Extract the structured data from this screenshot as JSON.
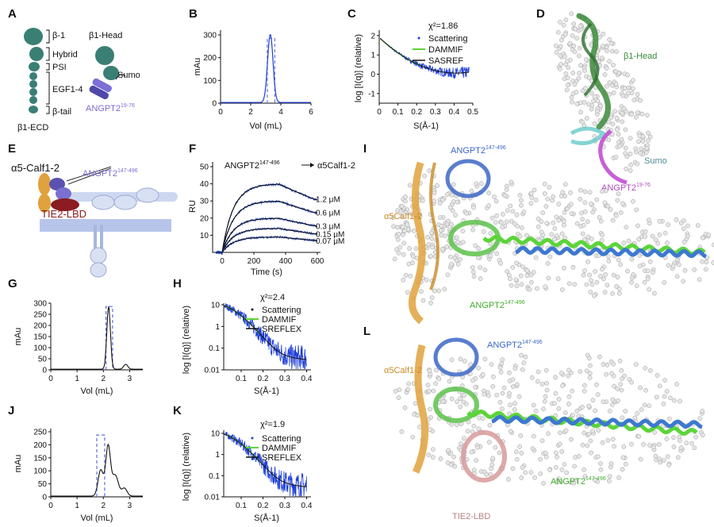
{
  "panels": {
    "A": {
      "letter": "A",
      "domains": [
        "β-1",
        "Hybrid",
        "PSI",
        "EGF1-4",
        "β-tail"
      ],
      "ecd_label": "β1-ECD",
      "head_label": "β1-Head",
      "sumo_label": "Sumo",
      "angpt_label": "ANGPT2",
      "angpt_sup": "19-76",
      "colors": {
        "integrin": "#3a7f74",
        "angpt": "#7b6ed6"
      }
    },
    "B": {
      "letter": "B"
    },
    "C": {
      "letter": "C",
      "chi": "χ²=1.86",
      "legend": [
        "Scattering",
        "DAMMIF",
        "SASREF"
      ]
    },
    "D": {
      "letter": "D",
      "head_label": "β1-Head",
      "sumo_label": "Sumo",
      "angpt_label": "ANGPT2",
      "angpt_sup": "19-76"
    },
    "E": {
      "letter": "E",
      "calf_label": "α5-Calf1-2",
      "angpt_label": "ANGPT2",
      "angpt_sup": "147-496",
      "tie2_label": "TIE2-LBD"
    },
    "F": {
      "letter": "F",
      "title_a": "ANGPT2",
      "title_sup": "147-496",
      "title_b": "α5Calf1-2",
      "conc_labels": [
        "1.2 μM",
        "0.6 μM",
        "0.3 μM",
        "0.15 μM",
        "0.07 μM"
      ]
    },
    "G": {
      "letter": "G"
    },
    "H": {
      "letter": "H",
      "chi": "χ²=2.4",
      "legend": [
        "Scattering",
        "DAMMIF",
        "SREFLEX"
      ]
    },
    "I": {
      "letter": "I",
      "calf_label": "α5Calf1-2",
      "angpt_top": "ANGPT2",
      "angpt_top_sup": "147-496",
      "angpt_bottom": "ANGPT2",
      "angpt_bottom_sup": "147-496"
    },
    "J": {
      "letter": "J"
    },
    "K": {
      "letter": "K",
      "chi": "χ²=1.9",
      "legend": [
        "Scattering",
        "DAMMIF",
        "SREFLEX"
      ]
    },
    "L": {
      "letter": "L",
      "calf_label": "α5Calf1-2",
      "angpt_top": "ANGPT2",
      "angpt_top_sup": "147-496",
      "angpt_bottom": "ANGPT2",
      "angpt_bottom_sup": "147-496",
      "tie2_label": "TIE2-LBD"
    }
  },
  "chart_data": [
    {
      "id": "B",
      "type": "line",
      "xlabel": "Vol (mL)",
      "ylabel": "mAu",
      "xlim": [
        0,
        6
      ],
      "ylim": [
        0,
        300
      ],
      "xticks": [
        0,
        2,
        4,
        6
      ],
      "yticks": [
        0,
        100,
        200,
        300
      ],
      "peak": {
        "x": 3.3,
        "height": 300,
        "width": 0.18
      },
      "fraction_window": [
        3.1,
        3.6
      ],
      "colors": {
        "trace": "#1f3fd6",
        "window": "#6a7bdc"
      }
    },
    {
      "id": "C",
      "type": "line",
      "xlabel": "S(Å-1)",
      "ylabel": "log [I(q)] (relative)",
      "xlim": [
        0,
        0.5
      ],
      "ylim": [
        -1.5,
        2.2
      ],
      "xticks": [
        0,
        0.1,
        0.2,
        0.3,
        0.4,
        0.5
      ],
      "yticks": [
        -1,
        0,
        1,
        2
      ],
      "series": [
        {
          "name": "Scattering"
        },
        {
          "name": "DAMMIF"
        },
        {
          "name": "SASREF"
        }
      ],
      "colors": {
        "Scattering": "#1f3fd6",
        "DAMMIF": "#5cd43a",
        "SASREF": "#111111"
      }
    },
    {
      "id": "F",
      "type": "line",
      "xlabel": "Time (s)",
      "ylabel": "RU",
      "xlim": [
        -60,
        600
      ],
      "ylim": [
        0,
        50
      ],
      "xticks": [
        0,
        200,
        400,
        600
      ],
      "yticks": [
        10,
        20,
        30,
        40,
        50
      ],
      "injection_end": 360,
      "series": [
        {
          "name": "1.2 μM",
          "plateau": 40
        },
        {
          "name": "0.6 μM",
          "plateau": 30
        },
        {
          "name": "0.3 μM",
          "plateau": 20
        },
        {
          "name": "0.15 μM",
          "plateau": 14
        },
        {
          "name": "0.07 μM",
          "plateau": 9
        }
      ],
      "colors": {
        "fit": "#111111",
        "data": "#2a50d8"
      }
    },
    {
      "id": "G",
      "type": "line",
      "xlabel": "Vol (mL)",
      "ylabel": "mAu",
      "xlim": [
        0,
        3.5
      ],
      "ylim": [
        0,
        300
      ],
      "xticks": [
        0,
        1,
        2,
        3
      ],
      "yticks": [
        0,
        50,
        100,
        150,
        200,
        250,
        300
      ],
      "peaks": [
        {
          "x": 2.2,
          "height": 280,
          "width": 0.07
        },
        {
          "x": 2.85,
          "height": 22,
          "width": 0.08
        }
      ],
      "fraction_window": [
        2.1,
        2.35
      ],
      "colors": {
        "trace": "#111111",
        "window": "#5a6ee0"
      }
    },
    {
      "id": "H",
      "type": "line",
      "xlabel": "S(Å-1)",
      "ylabel": "log [I(q)] (relative)",
      "xlim": [
        0.02,
        0.42
      ],
      "ylim": [
        0.01,
        10
      ],
      "yscale": "log",
      "xticks": [
        0.1,
        0.2,
        0.3,
        0.4
      ],
      "yticks": [
        10,
        1,
        0.1,
        0.01
      ],
      "series": [
        {
          "name": "Scattering"
        },
        {
          "name": "DAMMIF"
        },
        {
          "name": "SREFLEX"
        }
      ],
      "colors": {
        "Scattering": "#1f3fd6",
        "DAMMIF": "#5cd43a",
        "SREFLEX": "#111111"
      }
    },
    {
      "id": "J",
      "type": "line",
      "xlabel": "Vol (mL)",
      "ylabel": "mAu",
      "xlim": [
        0,
        3.5
      ],
      "ylim": [
        0,
        250
      ],
      "xticks": [
        0,
        1,
        2,
        3
      ],
      "yticks": [
        0,
        50,
        100,
        150,
        200,
        250
      ],
      "peaks": [
        {
          "x": 1.9,
          "height": 100,
          "width": 0.1
        },
        {
          "x": 2.18,
          "height": 190,
          "width": 0.09
        },
        {
          "x": 2.45,
          "height": 80,
          "width": 0.12
        },
        {
          "x": 2.8,
          "height": 30,
          "width": 0.1
        }
      ],
      "fraction_window": [
        1.75,
        2.05
      ],
      "colors": {
        "trace": "#111111",
        "window": "#5a6ee0"
      }
    },
    {
      "id": "K",
      "type": "line",
      "xlabel": "S(Å-1)",
      "ylabel": "log [I(q)] (relative)",
      "xlim": [
        0.02,
        0.42
      ],
      "ylim": [
        0.01,
        10
      ],
      "yscale": "log",
      "xticks": [
        0.1,
        0.2,
        0.3,
        0.4
      ],
      "yticks": [
        10,
        1,
        0.1,
        0.01
      ],
      "series": [
        {
          "name": "Scattering"
        },
        {
          "name": "DAMMIF"
        },
        {
          "name": "SREFLEX"
        }
      ],
      "colors": {
        "Scattering": "#1f3fd6",
        "DAMMIF": "#5cd43a",
        "SREFLEX": "#111111"
      }
    }
  ]
}
